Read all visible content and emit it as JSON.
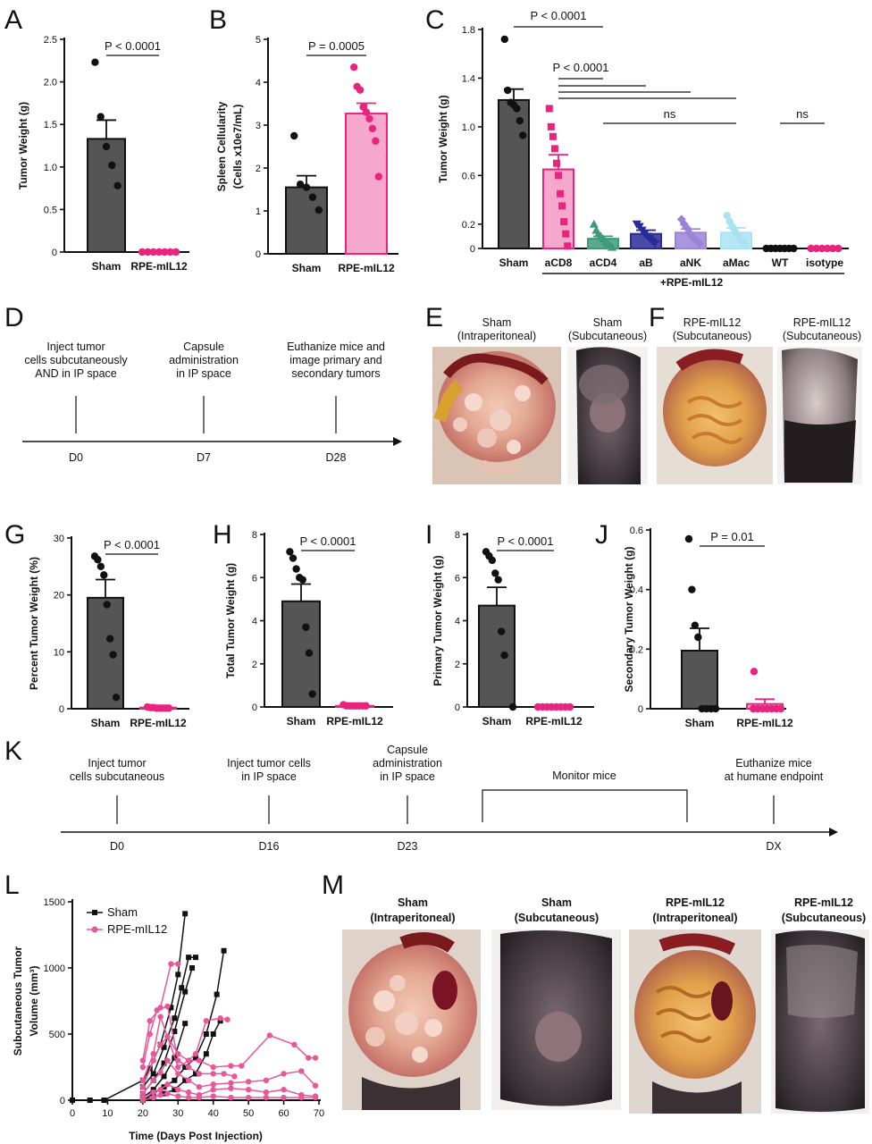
{
  "colors": {
    "sham": "#555555",
    "sham_dot": "#111111",
    "pink": "#e8579a",
    "pink_bar": "#f6a8cc",
    "magenta": "#e8247e",
    "acd4": "#3f9a7a",
    "ab": "#2a2a99",
    "ank": "#9b84d8",
    "amac": "#a9e3f3",
    "wt": "#111111"
  },
  "panel_letters": [
    "A",
    "B",
    "C",
    "D",
    "E",
    "F",
    "G",
    "H",
    "I",
    "J",
    "K",
    "L",
    "M"
  ],
  "chart_data": [
    {
      "panel": "A",
      "type": "bar",
      "ylabel": "Tumor Weight (g)",
      "yticks": [
        "0",
        "0.5",
        "1.0",
        "1.5",
        "2.0",
        "2.5"
      ],
      "ylim": [
        0,
        2.5
      ],
      "categories": [
        "Sham",
        "RPE-mIL12"
      ],
      "values": [
        1.33,
        0.0
      ],
      "sem": [
        0.22,
        0.0
      ],
      "points": [
        [
          2.23,
          1.59,
          1.24,
          1.02,
          0.78
        ],
        [
          0,
          0,
          0,
          0,
          0,
          0,
          0
        ]
      ],
      "comparison": "P < 0.0001"
    },
    {
      "panel": "B",
      "type": "bar",
      "ylabel": "Spleen Cellularity",
      "ylabel2": "(Cells x10e7/mL)",
      "yticks": [
        "0",
        "1",
        "2",
        "3",
        "4",
        "5"
      ],
      "ylim": [
        0,
        5
      ],
      "categories": [
        "Sham",
        "RPE-mIL12"
      ],
      "values": [
        1.55,
        3.27
      ],
      "sem": [
        0.27,
        0.24
      ],
      "points": [
        [
          2.75,
          1.62,
          1.55,
          1.32,
          1.02
        ],
        [
          4.35,
          3.9,
          3.82,
          3.42,
          3.3,
          3.15,
          2.92,
          2.63,
          1.8
        ]
      ],
      "comparison": "P = 0.0005"
    },
    {
      "panel": "C",
      "type": "bar",
      "ylabel": "Tumor Weight (g)",
      "yticks": [
        "0",
        "0.2",
        "0.6",
        "1.0",
        "1.4",
        "1.8"
      ],
      "ylim": [
        0,
        1.8
      ],
      "categories": [
        "Sham",
        "aCD8",
        "aCD4",
        "aB",
        "aNK",
        "aMac",
        "WT",
        "isotype"
      ],
      "values": [
        1.22,
        0.65,
        0.08,
        0.12,
        0.13,
        0.13,
        0.0,
        0.0
      ],
      "sem": [
        0.09,
        0.12,
        0.02,
        0.03,
        0.03,
        0.04,
        0.0,
        0.0
      ],
      "points": [
        [
          1.72,
          1.3,
          1.2,
          1.18,
          1.15,
          1.05,
          0.93
        ],
        [
          1.15,
          1.0,
          0.92,
          0.82,
          0.7,
          0.6,
          0.45,
          0.35,
          0.22,
          0.12,
          0.02
        ],
        [
          0.2,
          0.15,
          0.12,
          0.1,
          0.08,
          0.06,
          0.04,
          0.02,
          0.01
        ],
        [
          0.2,
          0.18,
          0.15,
          0.12,
          0.1,
          0.08,
          0.06,
          0.04
        ],
        [
          0.24,
          0.2,
          0.17,
          0.13,
          0.1,
          0.08,
          0.06,
          0.04
        ],
        [
          0.27,
          0.22,
          0.18,
          0.14,
          0.11,
          0.08,
          0.06,
          0.03
        ],
        [
          0,
          0,
          0,
          0,
          0,
          0,
          0
        ],
        [
          0,
          0,
          0,
          0,
          0,
          0
        ]
      ],
      "group_label": "+RPE-mIL12",
      "comparisons": [
        "P < 0.0001",
        "P < 0.0001",
        "ns",
        "ns"
      ]
    },
    {
      "panel": "G",
      "type": "bar",
      "ylabel": "Percent Tumor  Weight (%)",
      "yticks": [
        "0",
        "10",
        "20",
        "30"
      ],
      "ylim": [
        0,
        30
      ],
      "categories": [
        "Sham",
        "RPE-mIL12"
      ],
      "values": [
        19.5,
        0.2
      ],
      "sem": [
        3.2,
        0.1
      ],
      "points": [
        [
          26.8,
          26.2,
          25.0,
          23.5,
          18.3,
          12.3,
          9.5,
          2.0
        ],
        [
          0.3,
          0.2,
          0.2,
          0.1,
          0.1,
          0.1,
          0.1,
          0.1
        ]
      ],
      "comparison": "P < 0.0001"
    },
    {
      "panel": "H",
      "type": "bar",
      "ylabel": "Total Tumor Weight (g)",
      "yticks": [
        "0",
        "2",
        "4",
        "6",
        "8"
      ],
      "ylim": [
        0,
        8
      ],
      "categories": [
        "Sham",
        "RPE-mIL12"
      ],
      "values": [
        4.9,
        0.05
      ],
      "sem": [
        0.8,
        0.02
      ],
      "points": [
        [
          7.2,
          6.9,
          6.4,
          6.0,
          5.9,
          3.7,
          2.5,
          0.6
        ],
        [
          0.1,
          0.05,
          0.05,
          0.05,
          0.05,
          0.05,
          0.05,
          0.05
        ]
      ],
      "comparison": "P < 0.0001"
    },
    {
      "panel": "I",
      "type": "bar",
      "ylabel": "Primary Tumor Weight (g)",
      "yticks": [
        "0",
        "2",
        "4",
        "6",
        "8"
      ],
      "ylim": [
        0,
        8
      ],
      "categories": [
        "Sham",
        "RPE-mIL12"
      ],
      "values": [
        4.7,
        0.0
      ],
      "sem": [
        0.85,
        0.0
      ],
      "points": [
        [
          7.2,
          7.0,
          6.8,
          6.2,
          5.9,
          3.5,
          2.4,
          0.0
        ],
        [
          0,
          0,
          0,
          0,
          0,
          0,
          0,
          0
        ]
      ],
      "comparison": "P < 0.0001"
    },
    {
      "panel": "J",
      "type": "bar",
      "ylabel": "Secondary Tumor Weight (g)",
      "yticks": [
        "0",
        "0.2",
        "0.4",
        "0.6"
      ],
      "ylim": [
        0,
        0.6
      ],
      "categories": [
        "Sham",
        "RPE-mIL12"
      ],
      "values": [
        0.195,
        0.016
      ],
      "sem": [
        0.075,
        0.016
      ],
      "points": [
        [
          0.57,
          0.4,
          0.28,
          0.24,
          0.0,
          0.0,
          0.0,
          0.0
        ],
        [
          0.125,
          0,
          0,
          0,
          0,
          0,
          0,
          0
        ]
      ],
      "comparison": "P = 0.01"
    },
    {
      "panel": "L",
      "type": "line",
      "xlabel": "Time (Days Post Injection)",
      "ylabel": "Subcutaneous Tumor",
      "ylabel2": "Volume (mm³)",
      "xticks": [
        "0",
        "10",
        "20",
        "30",
        "40",
        "50",
        "60",
        "70"
      ],
      "yticks": [
        "0",
        "500",
        "1000",
        "1500"
      ],
      "xlim": [
        0,
        70
      ],
      "ylim": [
        0,
        1500
      ],
      "legend": [
        "Sham",
        "RPE-mIL12"
      ],
      "series": [
        {
          "name": "Sham",
          "values": [
            [
              0,
              0
            ],
            [
              5,
              0
            ],
            [
              9,
              0
            ],
            [
              20,
              150
            ],
            [
              22,
              240
            ],
            [
              25,
              420
            ],
            [
              28,
              700
            ],
            [
              30,
              950
            ],
            [
              32,
              1410
            ]
          ]
        },
        {
          "name": "Sham",
          "values": [
            [
              20,
              100
            ],
            [
              23,
              200
            ],
            [
              26,
              400
            ],
            [
              29,
              620
            ],
            [
              31,
              850
            ],
            [
              33,
              1080
            ],
            [
              35,
              1080
            ]
          ]
        },
        {
          "name": "Sham",
          "values": [
            [
              20,
              50
            ],
            [
              23,
              150
            ],
            [
              26,
              280
            ],
            [
              29,
              520
            ],
            [
              32,
              820
            ],
            [
              34,
              1000
            ]
          ]
        },
        {
          "name": "Sham",
          "values": [
            [
              20,
              20
            ],
            [
              23,
              80
            ],
            [
              26,
              180
            ],
            [
              29,
              320
            ],
            [
              32,
              580
            ]
          ]
        },
        {
          "name": "Sham",
          "values": [
            [
              20,
              0
            ],
            [
              23,
              50
            ],
            [
              26,
              100
            ],
            [
              29,
              150
            ],
            [
              32,
              250
            ],
            [
              35,
              320
            ],
            [
              38,
              500
            ],
            [
              41,
              800
            ],
            [
              43,
              1130
            ]
          ]
        },
        {
          "name": "Sham",
          "values": [
            [
              20,
              10
            ],
            [
              23,
              20
            ],
            [
              26,
              50
            ],
            [
              29,
              80
            ],
            [
              32,
              150
            ],
            [
              35,
              200
            ],
            [
              38,
              350
            ],
            [
              40,
              500
            ],
            [
              42,
              600
            ]
          ]
        },
        {
          "name": "RPE-mIL12",
          "values": [
            [
              20,
              300
            ],
            [
              22,
              600
            ],
            [
              25,
              700
            ],
            [
              28,
              1030
            ],
            [
              30,
              1030
            ]
          ]
        },
        {
          "name": "RPE-mIL12",
          "values": [
            [
              20,
              250
            ],
            [
              22,
              500
            ],
            [
              24,
              680
            ],
            [
              27,
              710
            ],
            [
              30,
              300
            ],
            [
              33,
              250
            ],
            [
              36,
              200
            ],
            [
              40,
              200
            ],
            [
              43,
              200
            ],
            [
              46,
              180
            ]
          ]
        },
        {
          "name": "RPE-mIL12",
          "values": [
            [
              20,
              150
            ],
            [
              23,
              350
            ],
            [
              25,
              630
            ],
            [
              27,
              480
            ],
            [
              30,
              250
            ],
            [
              33,
              300
            ],
            [
              35,
              350
            ],
            [
              38,
              600
            ],
            [
              42,
              620
            ],
            [
              44,
              610
            ]
          ]
        },
        {
          "name": "RPE-mIL12",
          "values": [
            [
              20,
              100
            ],
            [
              23,
              300
            ],
            [
              25,
              420
            ],
            [
              27,
              480
            ],
            [
              30,
              350
            ],
            [
              33,
              300
            ],
            [
              36,
              300
            ],
            [
              40,
              250
            ],
            [
              45,
              260
            ],
            [
              48,
              260
            ],
            [
              56,
              490
            ],
            [
              63,
              420
            ],
            [
              67,
              320
            ],
            [
              69,
              320
            ]
          ]
        },
        {
          "name": "RPE-mIL12",
          "values": [
            [
              20,
              50
            ],
            [
              23,
              150
            ],
            [
              25,
              210
            ],
            [
              27,
              300
            ],
            [
              30,
              200
            ],
            [
              33,
              150
            ],
            [
              36,
              100
            ],
            [
              40,
              120
            ],
            [
              45,
              130
            ],
            [
              50,
              140
            ],
            [
              55,
              150
            ],
            [
              60,
              200
            ],
            [
              65,
              220
            ],
            [
              69,
              110
            ]
          ]
        },
        {
          "name": "RPE-mIL12",
          "values": [
            [
              20,
              20
            ],
            [
              23,
              60
            ],
            [
              25,
              80
            ],
            [
              27,
              120
            ],
            [
              30,
              80
            ],
            [
              33,
              60
            ],
            [
              36,
              40
            ],
            [
              40,
              80
            ],
            [
              45,
              90
            ],
            [
              50,
              80
            ],
            [
              55,
              60
            ],
            [
              60,
              80
            ],
            [
              65,
              40
            ],
            [
              69,
              30
            ]
          ]
        },
        {
          "name": "RPE-mIL12",
          "values": [
            [
              20,
              0
            ],
            [
              23,
              20
            ],
            [
              25,
              40
            ],
            [
              27,
              50
            ],
            [
              30,
              30
            ],
            [
              33,
              20
            ],
            [
              36,
              20
            ],
            [
              40,
              30
            ],
            [
              45,
              20
            ],
            [
              50,
              20
            ],
            [
              55,
              20
            ],
            [
              60,
              20
            ],
            [
              65,
              20
            ],
            [
              69,
              20
            ]
          ]
        }
      ]
    }
  ],
  "timeline_d": {
    "events": [
      "Inject tumor|cells subcutaneously|AND in IP space",
      "Capsule|administration|in IP space",
      "Euthanize mice and|image primary and|secondary tumors"
    ],
    "days": [
      "D0",
      "D7",
      "D28"
    ]
  },
  "timeline_k": {
    "events": [
      "Inject tumor|cells subcutaneous",
      "Inject tumor cells|in IP space",
      "Capsule|administration|in IP space",
      "Monitor mice",
      "Euthanize mice|at humane endpoint"
    ],
    "days": [
      "D0",
      "D16",
      "D23",
      "DX"
    ]
  },
  "photos_e": [
    "Sham|(Intraperitoneal)",
    "Sham|(Subcutaneous)"
  ],
  "photos_f": [
    "RPE-mIL12|(Subcutaneous)",
    "RPE-mIL12|(Subcutaneous)"
  ],
  "photos_m": [
    "Sham|(Intraperitoneal)",
    "Sham|(Subcutaneous)",
    "RPE-mIL12|(Intraperitoneal)",
    "RPE-mIL12|(Subcutaneous)"
  ]
}
